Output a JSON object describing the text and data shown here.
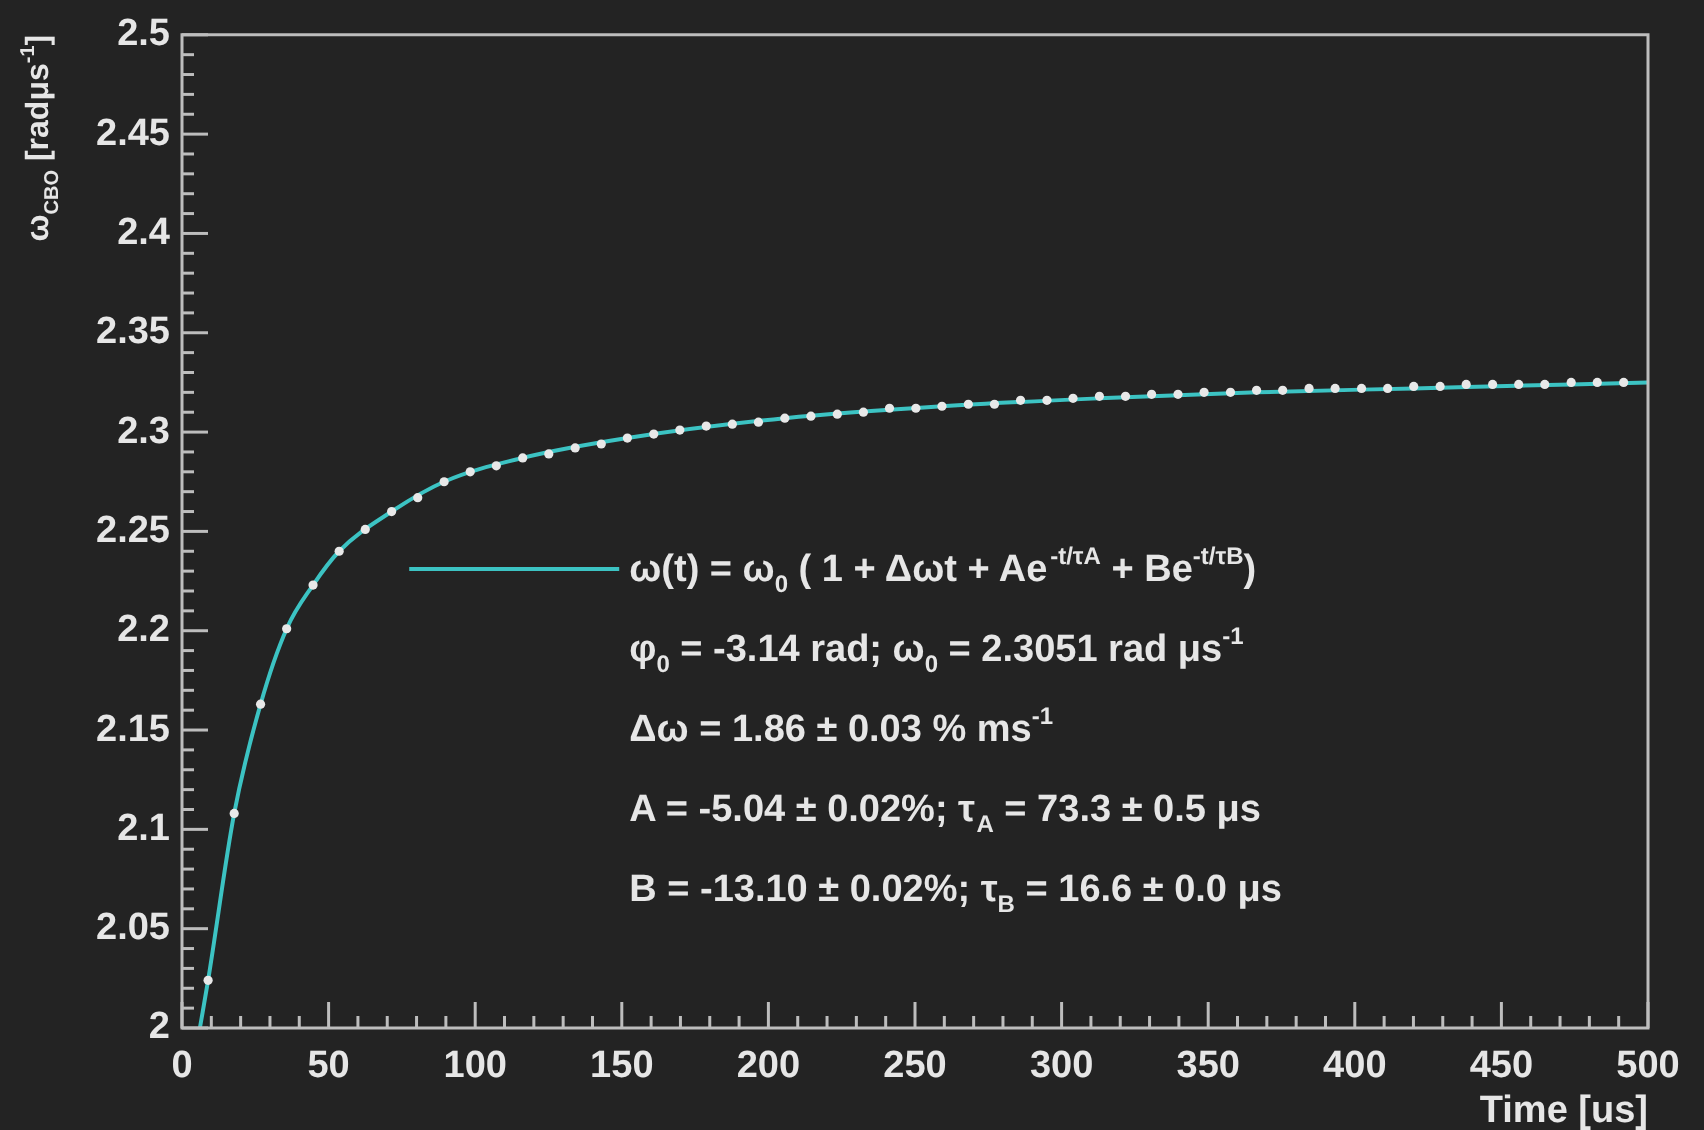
{
  "chart_data": {
    "type": "scatter",
    "xlabel": "Time [us]",
    "ylabel": "ω$_{CBO}$ [radμs$^{-1}$]",
    "xlim": [
      0,
      500
    ],
    "ylim": [
      2,
      2.5
    ],
    "xticks": [
      0,
      {
        "value": 10,
        "label": null
      },
      {
        "value": 20,
        "label": null
      },
      {
        "value": 30,
        "label": null
      },
      {
        "value": 40,
        "label": null
      },
      50,
      {
        "value": 60,
        "label": null
      },
      {
        "value": 70,
        "label": null
      },
      {
        "value": 80,
        "label": null
      },
      {
        "value": 90,
        "label": null
      },
      100,
      {
        "value": 110,
        "label": null
      },
      {
        "value": 120,
        "label": null
      },
      {
        "value": 130,
        "label": null
      },
      {
        "value": 140,
        "label": null
      },
      150,
      {
        "value": 160,
        "label": null
      },
      {
        "value": 170,
        "label": null
      },
      {
        "value": 180,
        "label": null
      },
      {
        "value": 190,
        "label": null
      },
      200,
      {
        "value": 210,
        "label": null
      },
      {
        "value": 220,
        "label": null
      },
      {
        "value": 230,
        "label": null
      },
      {
        "value": 240,
        "label": null
      },
      250,
      {
        "value": 260,
        "label": null
      },
      {
        "value": 270,
        "label": null
      },
      {
        "value": 280,
        "label": null
      },
      {
        "value": 290,
        "label": null
      },
      300,
      {
        "value": 310,
        "label": null
      },
      {
        "value": 320,
        "label": null
      },
      {
        "value": 330,
        "label": null
      },
      {
        "value": 340,
        "label": null
      },
      350,
      {
        "value": 360,
        "label": null
      },
      {
        "value": 370,
        "label": null
      },
      {
        "value": 380,
        "label": null
      },
      {
        "value": 390,
        "label": null
      },
      400,
      {
        "value": 410,
        "label": null
      },
      {
        "value": 420,
        "label": null
      },
      {
        "value": 430,
        "label": null
      },
      {
        "value": 440,
        "label": null
      },
      450,
      {
        "value": 460,
        "label": null
      },
      {
        "value": 470,
        "label": null
      },
      {
        "value": 480,
        "label": null
      },
      {
        "value": 490,
        "label": null
      },
      500
    ],
    "yticks": [
      2,
      {
        "value": 2.01,
        "label": null
      },
      {
        "value": 2.02,
        "label": null
      },
      {
        "value": 2.03,
        "label": null
      },
      {
        "value": 2.04,
        "label": null
      },
      2.05,
      {
        "value": 2.06,
        "label": null
      },
      {
        "value": 2.07,
        "label": null
      },
      {
        "value": 2.08,
        "label": null
      },
      {
        "value": 2.09,
        "label": null
      },
      2.1,
      {
        "value": 2.11,
        "label": null
      },
      {
        "value": 2.12,
        "label": null
      },
      {
        "value": 2.13,
        "label": null
      },
      {
        "value": 2.14,
        "label": null
      },
      2.15,
      {
        "value": 2.16,
        "label": null
      },
      {
        "value": 2.17,
        "label": null
      },
      {
        "value": 2.18,
        "label": null
      },
      {
        "value": 2.19,
        "label": null
      },
      2.2,
      {
        "value": 2.21,
        "label": null
      },
      {
        "value": 2.22,
        "label": null
      },
      {
        "value": 2.23,
        "label": null
      },
      {
        "value": 2.24,
        "label": null
      },
      2.25,
      {
        "value": 2.26,
        "label": null
      },
      {
        "value": 2.27,
        "label": null
      },
      {
        "value": 2.28,
        "label": null
      },
      {
        "value": 2.29,
        "label": null
      },
      2.3,
      {
        "value": 2.31,
        "label": null
      },
      {
        "value": 2.32,
        "label": null
      },
      {
        "value": 2.33,
        "label": null
      },
      {
        "value": 2.34,
        "label": null
      },
      2.35,
      {
        "value": 2.36,
        "label": null
      },
      {
        "value": 2.37,
        "label": null
      },
      {
        "value": 2.38,
        "label": null
      },
      {
        "value": 2.39,
        "label": null
      },
      2.4,
      {
        "value": 2.41,
        "label": null
      },
      {
        "value": 2.42,
        "label": null
      },
      {
        "value": 2.43,
        "label": null
      },
      {
        "value": 2.44,
        "label": null
      },
      2.45,
      {
        "value": 2.46,
        "label": null
      },
      {
        "value": 2.47,
        "label": null
      },
      {
        "value": 2.48,
        "label": null
      },
      {
        "value": 2.49,
        "label": null
      },
      2.5
    ],
    "grid": false,
    "legend": "center right",
    "series": [
      {
        "color": "#e8e8e8",
        "marker": "circle",
        "x": [
          8.9,
          17.8,
          26.8,
          35.7,
          44.7,
          53.6,
          62.5,
          71.5,
          80.4,
          89.4,
          98.3,
          107.2,
          116.2,
          125.1,
          134.1,
          143.0,
          151.9,
          160.9,
          169.8,
          178.8,
          187.7,
          196.6,
          205.6,
          214.5,
          223.5,
          232.4,
          241.3,
          250.3,
          259.2,
          268.2,
          277.1,
          286.0,
          295.0,
          303.9,
          312.9,
          321.8,
          330.7,
          339.7,
          348.6,
          357.6,
          366.5,
          375.4,
          384.4,
          393.3,
          402.3,
          411.2,
          420.1,
          429.1,
          438.0,
          447.0,
          455.9,
          464.8,
          473.8,
          482.7,
          491.7
        ],
        "values": [
          2.024,
          2.108,
          2.163,
          2.201,
          2.223,
          2.24,
          2.251,
          2.26,
          2.267,
          2.275,
          2.28,
          2.283,
          2.287,
          2.289,
          2.292,
          2.294,
          2.297,
          2.299,
          2.301,
          2.303,
          2.304,
          2.305,
          2.307,
          2.308,
          2.309,
          2.31,
          2.312,
          2.312,
          2.313,
          2.314,
          2.314,
          2.316,
          2.316,
          2.317,
          2.318,
          2.318,
          2.319,
          2.319,
          2.32,
          2.32,
          2.321,
          2.321,
          2.322,
          2.322,
          2.322,
          2.322,
          2.323,
          2.323,
          2.324,
          2.324,
          2.324,
          2.324,
          2.325,
          2.325,
          2.325
        ]
      },
      {
        "type": "line",
        "name": "ω(t) = ω$_{0}$ ( 1 + Δωt + Ae$^{-t/τA}$ + Be$^{-t/τB}$)",
        "color": "#3cc3c3",
        "marker": "none",
        "line_style": "solid",
        "x": [
          6.1,
          8.9,
          17.8,
          26.8,
          35.7,
          44.7,
          53.6,
          71.5,
          89.4,
          116.2,
          151.9,
          205.6,
          259.2,
          312.9,
          366.5,
          420.1,
          473.8,
          500
        ],
        "values": [
          2.0,
          2.024,
          2.108,
          2.163,
          2.201,
          2.223,
          2.24,
          2.26,
          2.275,
          2.287,
          2.297,
          2.307,
          2.313,
          2.317,
          2.32,
          2.322,
          2.324,
          2.325
        ]
      }
    ],
    "annotations": [
      "φ$_{0}$ = -3.14 rad; ω$_{0}$ = 2.3051 rad μs$^{-1}$",
      "Δω = 1.86 ± 0.03 % ms$^{-1}$",
      "A = -5.04 ± 0.02%; τ$_{A}$ = 73.3 ± 0.5 μs",
      "B = -13.10 ± 0.02%; τ$_{B}$ = 16.6 ± 0.0 μs"
    ]
  }
}
